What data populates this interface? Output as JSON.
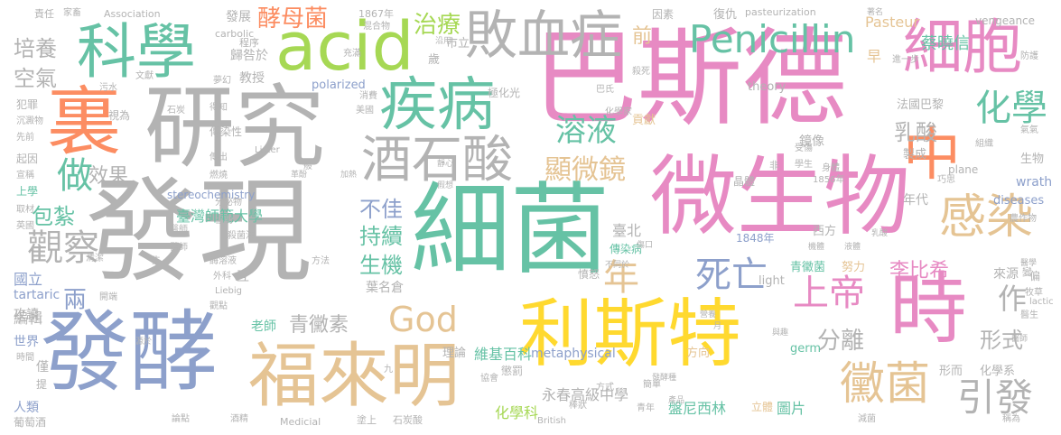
{
  "palette": {
    "green": "#66c2a5",
    "orange": "#fc8d62",
    "blue": "#8da0cb",
    "pink": "#e78ac3",
    "lime": "#a6d854",
    "yellow": "#ffd92f",
    "tan": "#e5c494",
    "gray": "#b3b3b3"
  },
  "words": {
    "w01": "巴斯德",
    "w02": "發現",
    "w03": "細菌",
    "w04": "研究",
    "w05": "微生物",
    "w06": "發酵",
    "w07": "利斯特",
    "w08": "福來明",
    "w09": "裏",
    "w10": "科學",
    "w11": "acid",
    "w12": "疾病",
    "w13": "敗血症",
    "w14": "細胞",
    "w15": "時",
    "w16": "中",
    "w17": "酒石酸",
    "w18": "感染",
    "w19": "Penicillin",
    "w20": "黴菌",
    "w21": "化學",
    "w22": "死亡",
    "w23": "God",
    "w24": "溶液",
    "w25": "顯微鏡",
    "w26": "上帝",
    "w27": "做",
    "w28": "觀察",
    "w29": "引發",
    "w30": "酵母菌",
    "w31": "治療",
    "w32": "培養",
    "w33": "空氣",
    "w34": "效果",
    "w35": "包紮",
    "w36": "不佳",
    "w37": "持續",
    "w38": "生機",
    "w39": "年",
    "w40": "乳酸",
    "w41": "分離",
    "w42": "形式",
    "w43": "作",
    "w44": "李比希",
    "w45": "兩",
    "w46": "前",
    "w47": "青黴素",
    "w48": "蔡曉信",
    "w49": "Pasteur",
    "w50": "臺灣師範大學",
    "w51": "永春高級中學",
    "w52": "盤尼西林",
    "w53": "化學科",
    "w54": "圖片",
    "w55": "維基百科",
    "w56": "metaphysical",
    "w57": "國立",
    "w58": "編輯",
    "w59": "tartaric",
    "w60": "攻讀",
    "w61": "世界",
    "w62": "人類",
    "w63": "葡萄酒",
    "w64": "Association",
    "w65": "carbolic",
    "w66": "1867年",
    "w67": "混合物",
    "w68": "發展",
    "w69": "程序",
    "w70": "歸咎於",
    "w71": "教授",
    "w72": "polarized",
    "w73": "theory",
    "w74": "pasteurization",
    "w75": "vengeance",
    "w76": "早",
    "w77": "法國巴黎",
    "w78": "鏡像",
    "w79": "製成",
    "w80": "生物",
    "w81": "stereochemistry",
    "w82": "plane",
    "w83": "wrath",
    "w84": "diseases",
    "w85": "年代",
    "w86": "西方",
    "w87": "1848年",
    "w88": "1856年",
    "w89": "晶體",
    "w90": "青黴菌",
    "w91": "努力",
    "w92": "來源",
    "w93": "light",
    "w94": "germ",
    "w95": "lactic",
    "w96": "老師",
    "w97": "理論",
    "w98": "方向",
    "w99": "立體",
    "w100": "化學系",
    "w101": "形而",
    "w102": "Medicial",
    "w103": "British",
    "w104": "塗上",
    "w105": "石炭酸",
    "w106": "臺北",
    "w107": "葉名倉",
    "w108": "傳染病",
    "w109": "市立",
    "w110": "極化光",
    "w111": "貢獻",
    "w112": "因素",
    "w113": "復仇",
    "w114": "責任",
    "w115": "家畜",
    "w116": "犯罪",
    "w117": "沉澱物",
    "w118": "起因",
    "w119": "上學",
    "w120": "英國",
    "w121": "傳染性",
    "w122": "殺菌法",
    "w123": "醫師",
    "w124": "外科",
    "w125": "Liebig",
    "w126": "Lister",
    "w127": "互",
    "w128": "懲罰",
    "w129": "憤怒",
    "w130": "方式",
    "w131": "協會",
    "w132": "九",
    "w133": "棒狀",
    "w134": "青年",
    "w135": "減菌",
    "w136": "稱為",
    "w137": "醫生",
    "w138": "牧草",
    "w139": "農作物",
    "w140": "巴氏",
    "w141": "化學家",
    "w142": "殺死",
    "w143": "沿用",
    "w144": "歲",
    "w145": "充滿",
    "w146": "夢幻",
    "w147": "文獻",
    "w148": "污水",
    "w149": "視為",
    "w150": "石炭",
    "w151": "先前",
    "w152": "宣稱",
    "w153": "取材",
    "w154": "得知",
    "w155": "美國",
    "w156": "傳出",
    "w157": "燃燒",
    "w158": "分泌物",
    "w159": "協助",
    "w160": "醫師",
    "w161": "清潔",
    "w162": "開端",
    "w163": "觀點",
    "w164": "酒精",
    "w165": "論點",
    "w166": "時間",
    "w167": "僅",
    "w168": "提",
    "w169": "先",
    "w170": "酶溶液",
    "w171": "方法",
    "w172": "消費",
    "w173": "靜心",
    "w174": "假想",
    "w175": "加熱",
    "w176": "革酚",
    "w177": "般",
    "w178": "非",
    "w179": "學生",
    "w180": "受傷",
    "w181": "身體",
    "w182": "巧思",
    "w183": "組織",
    "w184": "氣氣",
    "w185": "進一步",
    "w186": "防護",
    "w187": "著名",
    "w188": "簡單",
    "w189": "傷口",
    "w190": "不同於",
    "w191": "發酵種",
    "w192": "機體",
    "w193": "液體",
    "w194": "乳酸",
    "w195": "營養",
    "w196": "產品",
    "w197": "醫學",
    "w198": "與趣",
    "w199": "月",
    "w200": "偏",
    "w201": "源於",
    "w202": "變",
    "w203": "醫師"
  }
}
